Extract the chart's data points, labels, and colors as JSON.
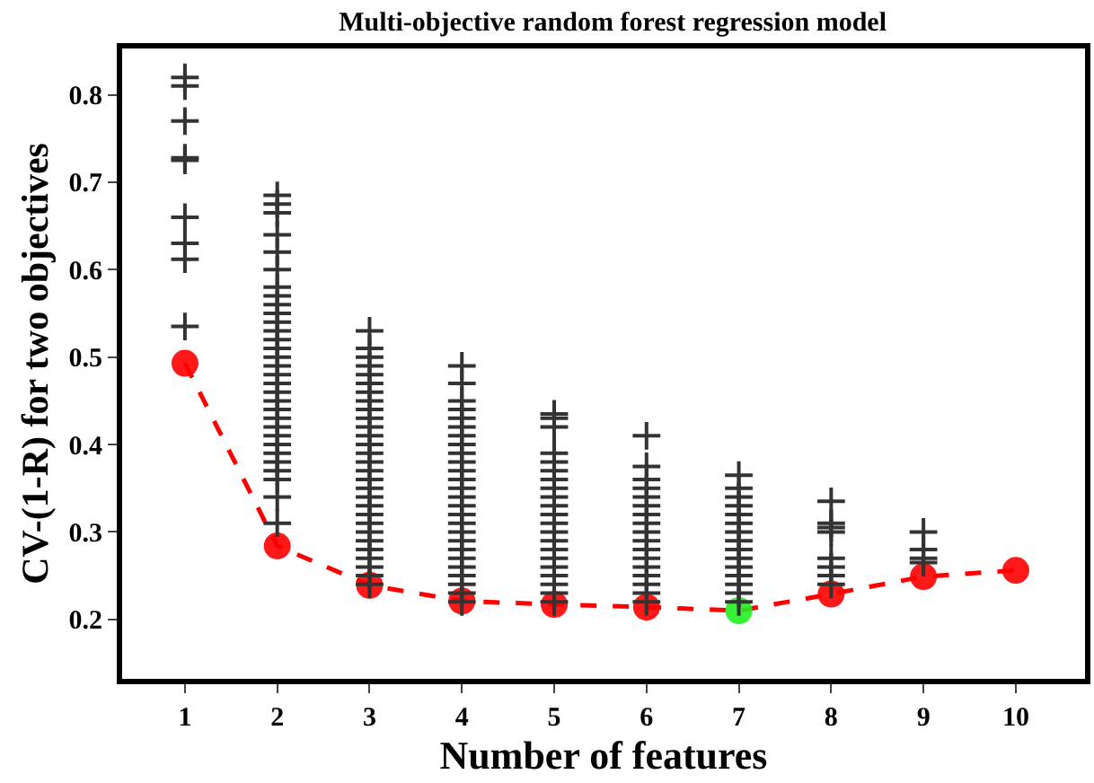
{
  "chart_data": {
    "type": "scatter",
    "title": "Multi-objective random forest regression model",
    "xlabel": "Number of features",
    "ylabel": "CV-(1-R) for two objectives",
    "xlim": [
      0.32,
      10.75
    ],
    "ylim": [
      0.132,
      0.853
    ],
    "xticks": [
      1,
      2,
      3,
      4,
      5,
      6,
      7,
      8,
      9,
      10
    ],
    "yticks": [
      0.2,
      0.3,
      0.4,
      0.5,
      0.6,
      0.7,
      0.8
    ],
    "grid": false,
    "series": [
      {
        "type": "scatter",
        "marker": "cross",
        "color": "#333333",
        "x": [
          1,
          1,
          1,
          1,
          1,
          1,
          1,
          1,
          1,
          2,
          2,
          2,
          2,
          2,
          2,
          2,
          2,
          2,
          2,
          2,
          2,
          2,
          2,
          2,
          2,
          2,
          2,
          2,
          2,
          2,
          2,
          2,
          2,
          2,
          2,
          2,
          2,
          2,
          2,
          2,
          3,
          3,
          3,
          3,
          3,
          3,
          3,
          3,
          3,
          3,
          3,
          3,
          3,
          3,
          3,
          3,
          3,
          3,
          3,
          3,
          3,
          3,
          3,
          3,
          3,
          3,
          3,
          3,
          3,
          4,
          4,
          4,
          4,
          4,
          4,
          4,
          4,
          4,
          4,
          4,
          4,
          4,
          4,
          4,
          4,
          4,
          4,
          4,
          4,
          4,
          4,
          4,
          4,
          4,
          4,
          5,
          5,
          5,
          5,
          5,
          5,
          5,
          5,
          5,
          5,
          5,
          5,
          5,
          5,
          5,
          5,
          5,
          5,
          5,
          5,
          5,
          6,
          6,
          6,
          6,
          6,
          6,
          6,
          6,
          6,
          6,
          6,
          6,
          6,
          6,
          6,
          6,
          6,
          7,
          7,
          7,
          7,
          7,
          7,
          7,
          7,
          7,
          7,
          7,
          7,
          7,
          7,
          7,
          8,
          8,
          8,
          8,
          8,
          8,
          8,
          8,
          9,
          9,
          9,
          9
        ],
        "values": [
          0.82,
          0.81,
          0.77,
          0.728,
          0.725,
          0.66,
          0.63,
          0.612,
          0.535,
          0.685,
          0.675,
          0.665,
          0.64,
          0.62,
          0.6,
          0.58,
          0.57,
          0.56,
          0.55,
          0.54,
          0.53,
          0.52,
          0.51,
          0.5,
          0.49,
          0.48,
          0.47,
          0.46,
          0.45,
          0.44,
          0.43,
          0.42,
          0.41,
          0.4,
          0.39,
          0.38,
          0.37,
          0.36,
          0.34,
          0.31,
          0.53,
          0.51,
          0.5,
          0.49,
          0.48,
          0.47,
          0.46,
          0.45,
          0.44,
          0.43,
          0.42,
          0.41,
          0.4,
          0.39,
          0.38,
          0.37,
          0.36,
          0.35,
          0.34,
          0.33,
          0.32,
          0.31,
          0.3,
          0.29,
          0.28,
          0.27,
          0.26,
          0.25,
          0.24,
          0.49,
          0.47,
          0.45,
          0.44,
          0.43,
          0.42,
          0.41,
          0.4,
          0.39,
          0.38,
          0.37,
          0.36,
          0.35,
          0.34,
          0.33,
          0.32,
          0.31,
          0.3,
          0.29,
          0.28,
          0.27,
          0.26,
          0.25,
          0.24,
          0.23,
          0.22,
          0.435,
          0.43,
          0.42,
          0.39,
          0.38,
          0.37,
          0.36,
          0.35,
          0.34,
          0.33,
          0.32,
          0.31,
          0.3,
          0.29,
          0.28,
          0.27,
          0.26,
          0.25,
          0.24,
          0.23,
          0.22,
          0.41,
          0.375,
          0.36,
          0.35,
          0.34,
          0.33,
          0.32,
          0.31,
          0.3,
          0.29,
          0.28,
          0.27,
          0.26,
          0.25,
          0.24,
          0.23,
          0.22,
          0.365,
          0.35,
          0.34,
          0.33,
          0.32,
          0.31,
          0.3,
          0.29,
          0.28,
          0.27,
          0.26,
          0.25,
          0.24,
          0.23,
          0.22,
          0.335,
          0.31,
          0.305,
          0.3,
          0.27,
          0.26,
          0.25,
          0.24,
          0.3,
          0.28,
          0.27,
          0.265
        ]
      },
      {
        "type": "line",
        "marker": "circle",
        "line_style": "dashed",
        "color": "#ff0000",
        "colors": [
          "#ff0000",
          "#ff0000",
          "#ff0000",
          "#ff0000",
          "#ff0000",
          "#ff0000",
          "#22ee22",
          "#ff0000",
          "#ff0000",
          "#ff0000"
        ],
        "x": [
          1,
          2,
          3,
          4,
          5,
          6,
          7,
          8,
          9,
          10
        ],
        "values": [
          0.493,
          0.284,
          0.239,
          0.221,
          0.217,
          0.214,
          0.21,
          0.229,
          0.249,
          0.256
        ]
      }
    ]
  }
}
